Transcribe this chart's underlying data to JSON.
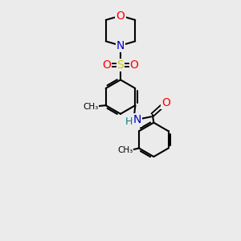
{
  "background_color": "#ebebeb",
  "atom_colors": {
    "C": "#000000",
    "N": "#0000cc",
    "O": "#ff0000",
    "S": "#cccc00",
    "H": "#008080"
  },
  "bond_color": "#000000",
  "bond_width": 1.5,
  "figsize": [
    3.0,
    3.0
  ],
  "dpi": 100,
  "xlim": [
    0,
    10
  ],
  "ylim": [
    0,
    10
  ]
}
